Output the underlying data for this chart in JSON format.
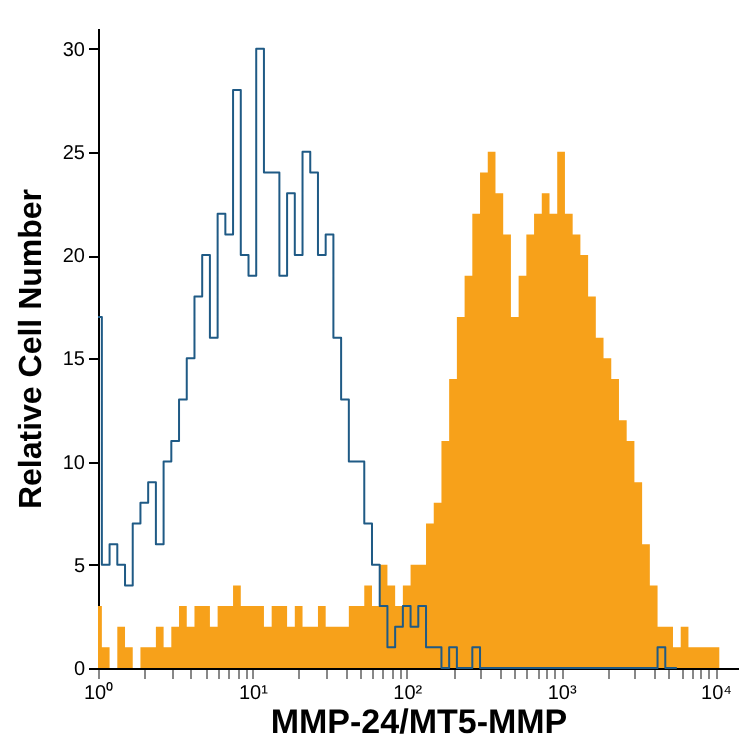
{
  "chart_data": {
    "type": "step",
    "xlabel": "MMP-24/MT5-MMP",
    "ylabel": "Relative Cell Number",
    "log": "x",
    "grid": false,
    "xlim": [
      1,
      14000
    ],
    "ylim": [
      0,
      31
    ],
    "xticks": [
      {
        "value": 1,
        "label": "10⁰"
      },
      {
        "value": 2,
        "label": null
      },
      {
        "value": 3,
        "label": null
      },
      {
        "value": 4,
        "label": null
      },
      {
        "value": 5,
        "label": null
      },
      {
        "value": 6,
        "label": null
      },
      {
        "value": 7,
        "label": null
      },
      {
        "value": 8,
        "label": null
      },
      {
        "value": 9,
        "label": null
      },
      {
        "value": 10,
        "label": "10¹"
      },
      {
        "value": 20,
        "label": null
      },
      {
        "value": 30,
        "label": null
      },
      {
        "value": 40,
        "label": null
      },
      {
        "value": 50,
        "label": null
      },
      {
        "value": 60,
        "label": null
      },
      {
        "value": 70,
        "label": null
      },
      {
        "value": 80,
        "label": null
      },
      {
        "value": 90,
        "label": null
      },
      {
        "value": 100,
        "label": "10²"
      },
      {
        "value": 200,
        "label": null
      },
      {
        "value": 300,
        "label": null
      },
      {
        "value": 400,
        "label": null
      },
      {
        "value": 500,
        "label": null
      },
      {
        "value": 600,
        "label": null
      },
      {
        "value": 700,
        "label": null
      },
      {
        "value": 800,
        "label": null
      },
      {
        "value": 900,
        "label": null
      },
      {
        "value": 1000,
        "label": "10³"
      },
      {
        "value": 2000,
        "label": null
      },
      {
        "value": 3000,
        "label": null
      },
      {
        "value": 4000,
        "label": null
      },
      {
        "value": 5000,
        "label": null
      },
      {
        "value": 6000,
        "label": null
      },
      {
        "value": 7000,
        "label": null
      },
      {
        "value": 8000,
        "label": null
      },
      {
        "value": 9000,
        "label": null
      },
      {
        "value": 10000,
        "label": "10⁴"
      }
    ],
    "yticks": [
      0,
      5,
      10,
      15,
      20,
      25,
      30
    ],
    "series": [
      {
        "type": "area",
        "color": "#f7a11a",
        "x": [
          1,
          1.122,
          1.259,
          1.413,
          1.585,
          1.778,
          1.995,
          2.239,
          2.512,
          2.818,
          3.162,
          3.548,
          3.981,
          4.467,
          5.012,
          5.623,
          6.31,
          7.079,
          7.943,
          8.913,
          10,
          11.22,
          12.59,
          14.13,
          15.85,
          17.78,
          19.95,
          22.39,
          25.12,
          28.18,
          31.62,
          35.48,
          39.81,
          44.67,
          50.12,
          56.23,
          63.1,
          70.79,
          79.43,
          89.13,
          100,
          112.2,
          125.9,
          141.3,
          158.5,
          177.8,
          199.5,
          223.9,
          251.2,
          281.8,
          316.2,
          354.8,
          398.1,
          446.7,
          501.2,
          562.3,
          631,
          707.9,
          794.3,
          891.3,
          1000,
          1122,
          1259,
          1413,
          1585,
          1778,
          1995,
          2239,
          2512,
          2818,
          3162,
          3548,
          3981,
          4467,
          5012,
          5623,
          6310,
          7079,
          7943,
          8913,
          10000,
          11220
        ],
        "values": [
          3,
          1,
          0,
          2,
          1,
          0,
          1,
          1,
          2,
          1,
          2,
          3,
          2,
          3,
          3,
          2,
          3,
          3,
          4,
          3,
          3,
          3,
          2,
          3,
          3,
          2,
          3,
          2,
          2,
          3,
          2,
          2,
          2,
          3,
          3,
          4,
          3,
          5,
          4,
          3,
          4,
          5,
          5,
          7,
          8,
          11,
          14,
          17,
          19,
          22,
          24,
          25,
          23,
          21,
          17,
          19,
          21,
          22,
          23,
          22,
          25,
          22,
          21,
          20,
          18,
          16,
          15,
          14,
          12,
          11,
          9,
          6,
          4,
          2,
          2,
          1,
          2,
          1,
          1,
          1,
          1,
          0
        ]
      },
      {
        "color": "#1f5a85",
        "x": [
          1,
          1.122,
          1.259,
          1.413,
          1.585,
          1.778,
          1.995,
          2.239,
          2.512,
          2.818,
          3.162,
          3.548,
          3.981,
          4.467,
          5.012,
          5.623,
          6.31,
          7.079,
          7.943,
          8.913,
          10,
          11.22,
          12.59,
          14.13,
          15.85,
          17.78,
          19.95,
          22.39,
          25.12,
          28.18,
          31.62,
          35.48,
          39.81,
          44.67,
          50.12,
          56.23,
          63.1,
          70.79,
          79.43,
          89.13,
          100,
          112.2,
          125.9,
          141.3,
          158.5,
          177.8,
          199.5,
          223.9,
          251.2,
          281.8,
          316.2,
          354.8,
          398.1,
          446.7,
          501.2,
          562.3,
          631,
          707.9,
          794.3,
          891.3,
          1000,
          1122,
          1259,
          1413,
          1585,
          1778,
          1995,
          2239,
          2512,
          2818,
          3162,
          3548,
          3981,
          4467,
          5012,
          5623
        ],
        "values": [
          17,
          5,
          6,
          5,
          4,
          7,
          8,
          9,
          6,
          10,
          11,
          13,
          15,
          18,
          20,
          16,
          22,
          21,
          28,
          20,
          19,
          30,
          24,
          24,
          19,
          23,
          20,
          25,
          24,
          20,
          21,
          16,
          13,
          10,
          10,
          7,
          5,
          3,
          1,
          2,
          3,
          2,
          3,
          1,
          1,
          0,
          1,
          0,
          0,
          1,
          0,
          0,
          0,
          0,
          0,
          0,
          0,
          0,
          0,
          0,
          0,
          0,
          0,
          0,
          0,
          0,
          0,
          0,
          0,
          0,
          0,
          0,
          0,
          1,
          0,
          0
        ]
      }
    ]
  }
}
